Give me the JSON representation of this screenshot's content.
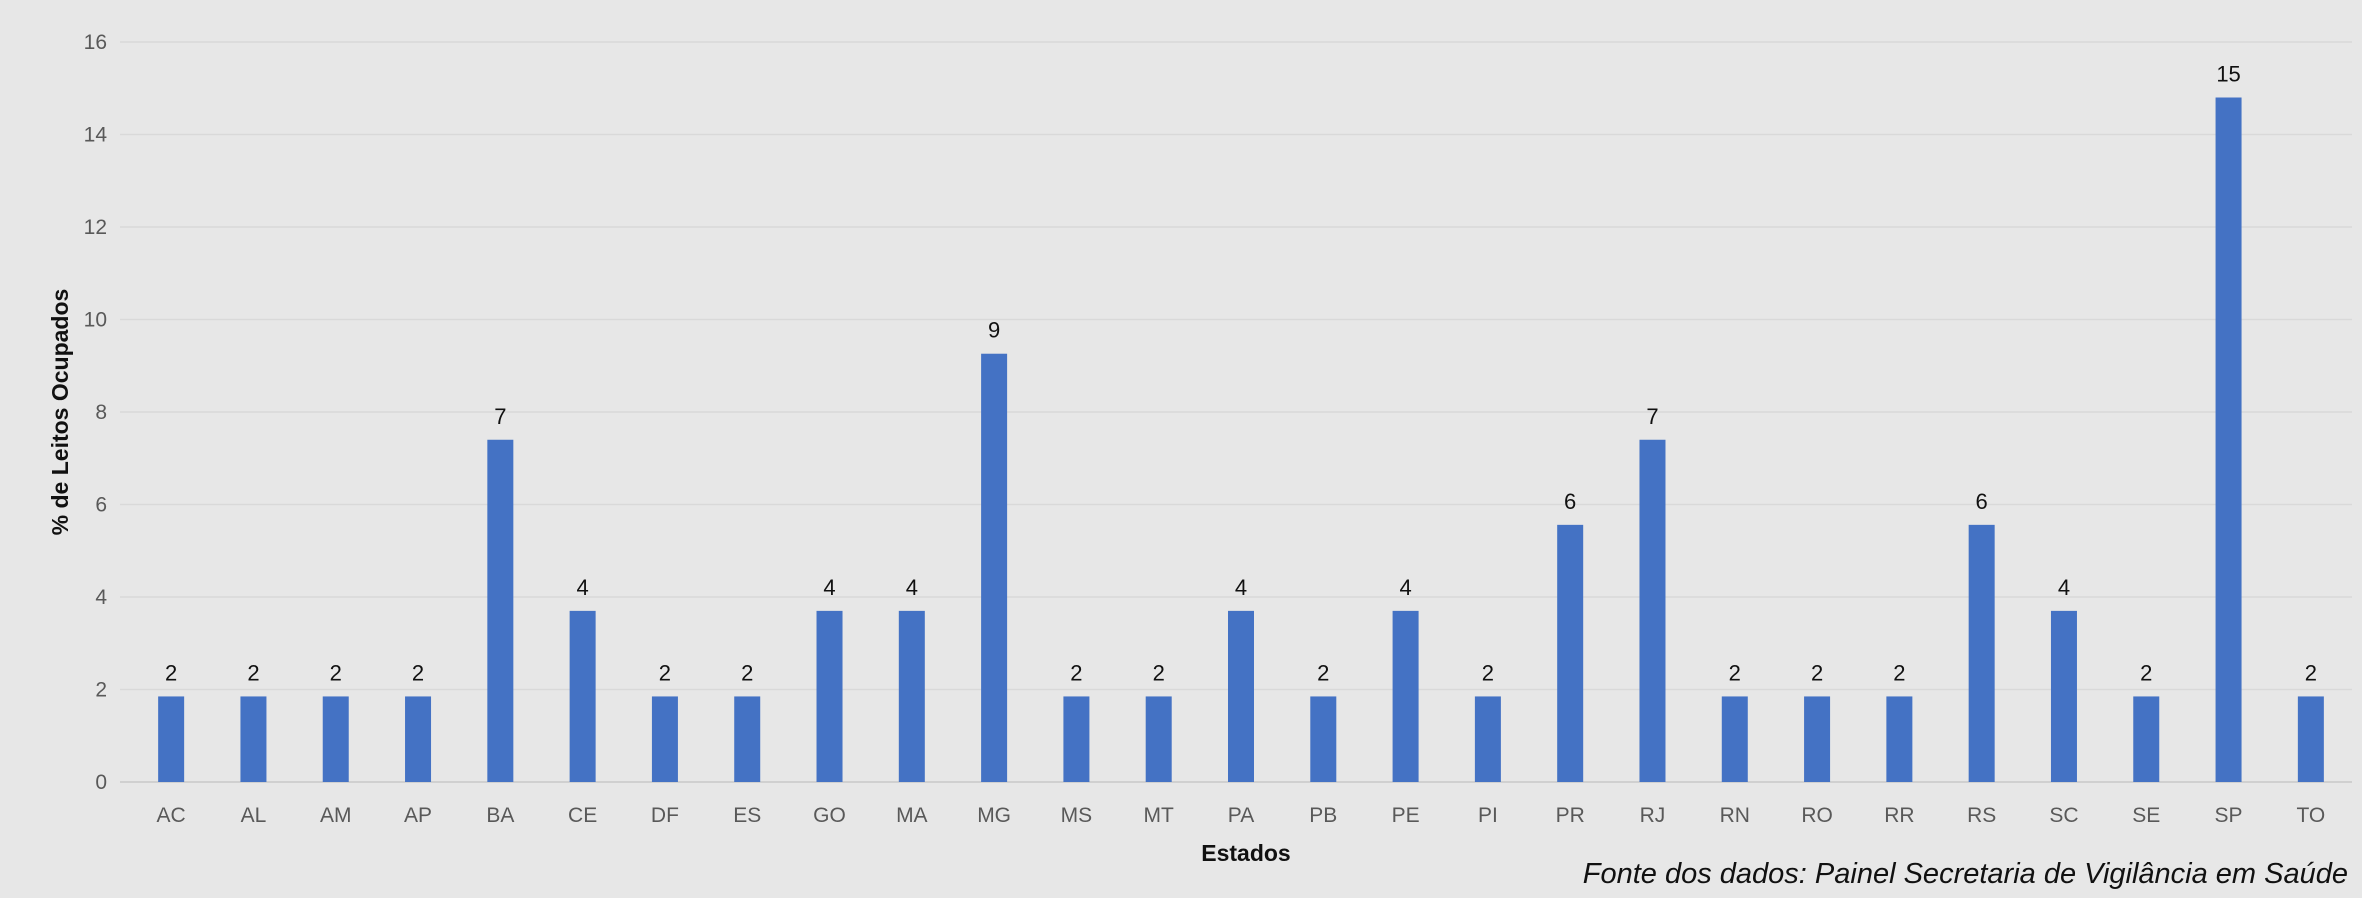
{
  "chart_data": {
    "type": "bar",
    "title": "",
    "xlabel": "Estados",
    "ylabel": "% de Leitos Ocupados",
    "ylim": [
      0,
      16
    ],
    "yticks": [
      0,
      2,
      4,
      6,
      8,
      10,
      12,
      14,
      16
    ],
    "grid": true,
    "legend": "none",
    "bar_color": "#4472c4",
    "categories": [
      "AC",
      "AL",
      "AM",
      "AP",
      "BA",
      "CE",
      "DF",
      "ES",
      "GO",
      "MA",
      "MG",
      "MS",
      "MT",
      "PA",
      "PB",
      "PE",
      "PI",
      "PR",
      "RJ",
      "RN",
      "RO",
      "RR",
      "RS",
      "SC",
      "SE",
      "SP",
      "TO"
    ],
    "values": [
      1.85,
      1.85,
      1.85,
      1.85,
      7.4,
      3.7,
      1.85,
      1.85,
      3.7,
      3.7,
      9.26,
      1.85,
      1.85,
      3.7,
      1.85,
      3.7,
      1.85,
      5.56,
      7.4,
      1.85,
      1.85,
      1.85,
      5.56,
      3.7,
      1.85,
      14.8,
      1.85
    ],
    "data_labels": [
      "2",
      "2",
      "2",
      "2",
      "7",
      "4",
      "2",
      "2",
      "4",
      "4",
      "9",
      "2",
      "2",
      "4",
      "2",
      "4",
      "2",
      "6",
      "7",
      "2",
      "2",
      "2",
      "6",
      "4",
      "2",
      "15",
      "2"
    ]
  },
  "source_note": "Fonte dos dados: Painel Secretaria de Vigilância em Saúde"
}
